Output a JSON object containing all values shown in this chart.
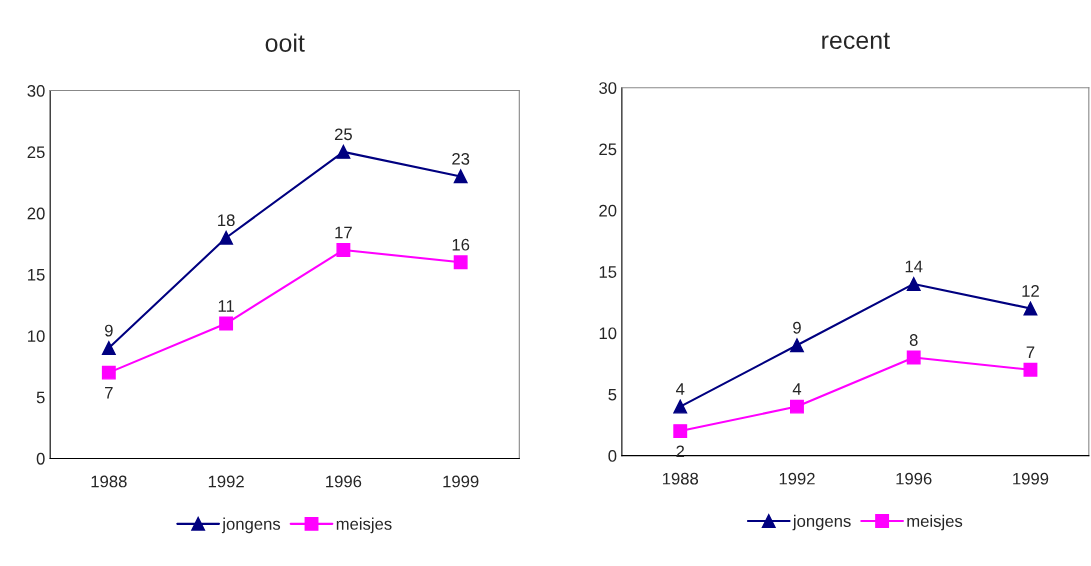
{
  "chart_data": [
    {
      "type": "line",
      "title": "ooit",
      "categories": [
        "1988",
        "1992",
        "1996",
        "1999"
      ],
      "ylim": [
        0,
        30
      ],
      "yticks": [
        0,
        5,
        10,
        15,
        20,
        25,
        30
      ],
      "data_labels": true,
      "legend": "bottom",
      "grid": false,
      "series": [
        {
          "name": "jongens",
          "color": "#000080",
          "marker": "triangle",
          "values": [
            9,
            18,
            25,
            23
          ]
        },
        {
          "name": "meisjes",
          "color": "#ff00ff",
          "marker": "square",
          "values": [
            7,
            11,
            17,
            16
          ]
        }
      ]
    },
    {
      "type": "line",
      "title": "recent",
      "categories": [
        "1988",
        "1992",
        "1996",
        "1999"
      ],
      "ylim": [
        0,
        30
      ],
      "yticks": [
        0,
        5,
        10,
        15,
        20,
        25,
        30
      ],
      "data_labels": true,
      "legend": "bottom",
      "grid": false,
      "series": [
        {
          "name": "jongens",
          "color": "#000080",
          "marker": "triangle",
          "values": [
            4,
            9,
            14,
            12
          ]
        },
        {
          "name": "meisjes",
          "color": "#ff00ff",
          "marker": "square",
          "values": [
            2,
            4,
            8,
            7
          ]
        }
      ]
    }
  ]
}
